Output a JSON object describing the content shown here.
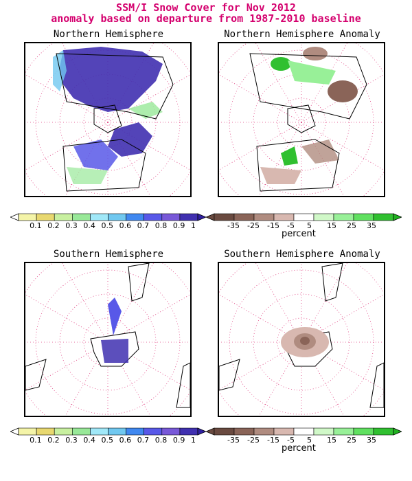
{
  "title": {
    "line1": "SSM/I Snow Cover for Nov 2012",
    "line2": "anomaly based on departure from 1987-2010 baseline"
  },
  "panels": {
    "nh": {
      "title": "Northern Hemisphere"
    },
    "nh_anom": {
      "title": "Northern Hemisphere Anomaly"
    },
    "sh": {
      "title": "Southern Hemisphere"
    },
    "sh_anom": {
      "title": "Southern Hemisphere Anomaly"
    }
  },
  "colorbars": {
    "cover": {
      "labels": [
        "0.1",
        "0.2",
        "0.3",
        "0.4",
        "0.5",
        "0.6",
        "0.7",
        "0.8",
        "0.9",
        "1"
      ],
      "colors": [
        "#f4f4a8",
        "#e8d870",
        "#c8f0a0",
        "#98e898",
        "#a0e8f8",
        "#70c8f0",
        "#4088f0",
        "#5858e8",
        "#7858d8",
        "#4030b0"
      ]
    },
    "anomaly": {
      "labels": [
        "-35",
        "-25",
        "-15",
        "-5",
        "5",
        "15",
        "25",
        "35"
      ],
      "colors": [
        "#6a4a40",
        "#8a6458",
        "#b08c80",
        "#d8b8b0",
        "#ffffff",
        "#d0f8c8",
        "#98f098",
        "#60e060",
        "#30c030"
      ],
      "unit": "percent"
    }
  },
  "colors": {
    "title": "#d4006e",
    "grid": "#e04080",
    "coast": "#000000"
  }
}
